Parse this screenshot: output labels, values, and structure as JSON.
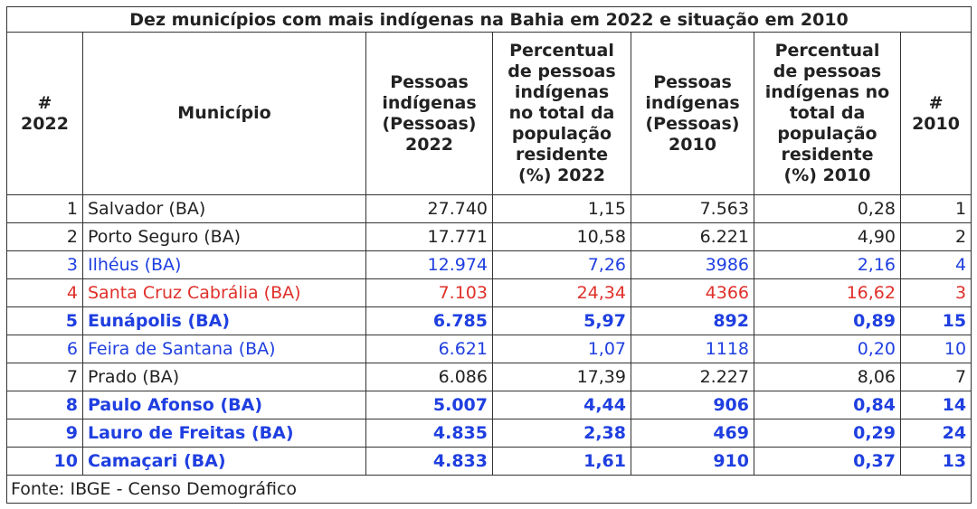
{
  "title": "Dez municípios com mais indígenas na Bahia em 2022 e situação em 2010",
  "headers": [
    [
      "#",
      "2022"
    ],
    [
      "Município"
    ],
    [
      "Pessoas",
      "indígenas",
      "(Pessoas)",
      "2022"
    ],
    [
      "Percentual",
      "de pessoas",
      "indígenas",
      "no total da",
      "população",
      "residente",
      "(%) 2022"
    ],
    [
      "Pessoas",
      "indígenas",
      "(Pessoas)",
      "2010"
    ],
    [
      "Percentual",
      "de pessoas",
      "indígenas no",
      "total da",
      "população",
      "residente",
      "(%) 2010"
    ],
    [
      "#",
      "2010"
    ]
  ],
  "rows": [
    {
      "rank2022": "1",
      "municipio": "Salvador (BA)",
      "pessoas2022": "27.740",
      "pct2022": "1,15",
      "pessoas2010": "7.563",
      "pct2010": "0,28",
      "rank2010": "1",
      "style": "normal"
    },
    {
      "rank2022": "2",
      "municipio": "Porto Seguro (BA)",
      "pessoas2022": "17.771",
      "pct2022": "10,58",
      "pessoas2010": "6.221",
      "pct2010": "4,90",
      "rank2010": "2",
      "style": "normal"
    },
    {
      "rank2022": "3",
      "municipio": "Ilhéus (BA)",
      "pessoas2022": "12.974",
      "pct2022": "7,26",
      "pessoas2010": "3986",
      "pct2010": "2,16",
      "rank2010": "4",
      "style": "blue"
    },
    {
      "rank2022": "4",
      "municipio": "Santa Cruz Cabrália (BA)",
      "pessoas2022": "7.103",
      "pct2022": "24,34",
      "pessoas2010": "4366",
      "pct2010": "16,62",
      "rank2010": "3",
      "style": "red"
    },
    {
      "rank2022": "5",
      "municipio": "Eunápolis (BA)",
      "pessoas2022": "6.785",
      "pct2022": "5,97",
      "pessoas2010": "892",
      "pct2010": "0,89",
      "rank2010": "15",
      "style": "blue-bold"
    },
    {
      "rank2022": "6",
      "municipio": "Feira de Santana (BA)",
      "pessoas2022": "6.621",
      "pct2022": "1,07",
      "pessoas2010": "1118",
      "pct2010": "0,20",
      "rank2010": "10",
      "style": "blue"
    },
    {
      "rank2022": "7",
      "municipio": "Prado (BA)",
      "pessoas2022": "6.086",
      "pct2022": "17,39",
      "pessoas2010": "2.227",
      "pct2010": "8,06",
      "rank2010": "7",
      "style": "normal"
    },
    {
      "rank2022": "8",
      "municipio": "Paulo Afonso (BA)",
      "pessoas2022": "5.007",
      "pct2022": "4,44",
      "pessoas2010": "906",
      "pct2010": "0,84",
      "rank2010": "14",
      "style": "blue-bold"
    },
    {
      "rank2022": "9",
      "municipio": "Lauro de Freitas (BA)",
      "pessoas2022": "4.835",
      "pct2022": "2,38",
      "pessoas2010": "469",
      "pct2010": "0,29",
      "rank2010": "24",
      "style": "blue-bold"
    },
    {
      "rank2022": "10",
      "municipio": "Camaçari (BA)",
      "pessoas2022": "4.833",
      "pct2022": "1,61",
      "pessoas2010": "910",
      "pct2010": "0,37",
      "rank2010": "13",
      "style": "blue-bold"
    }
  ],
  "source": "Fonte: IBGE - Censo Demográfico",
  "colors": {
    "blue": "#1f3fe0",
    "red": "#e0302a",
    "text": "#222222",
    "border": "#333333"
  }
}
